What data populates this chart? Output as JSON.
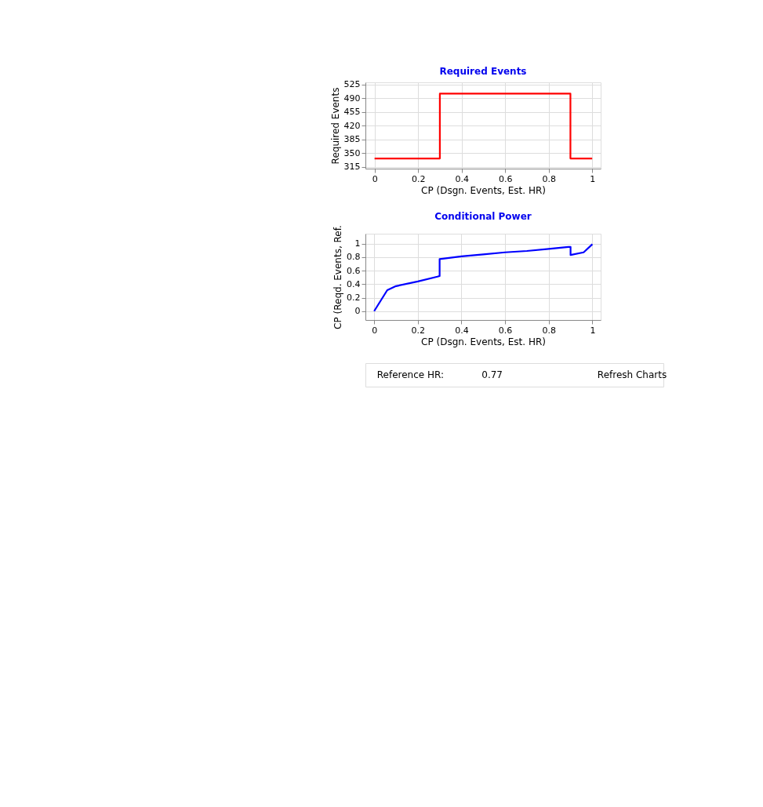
{
  "chart_data": [
    {
      "type": "line",
      "title": "Required Events",
      "xlabel": "CP (Dsgn. Events, Est. HR)",
      "ylabel": "Required Events",
      "x": [
        0,
        0.3,
        0.3,
        0.9,
        0.9,
        1
      ],
      "series": [
        {
          "color": "#ff0000",
          "values": [
            336,
            336,
            502,
            502,
            336,
            336
          ]
        }
      ],
      "xlim": [
        -0.042,
        1.039
      ],
      "ylim": [
        310,
        531
      ],
      "xticks": [
        0,
        0.2,
        0.4,
        0.6,
        0.8,
        1
      ],
      "yticks": [
        315,
        350,
        385,
        420,
        455,
        490,
        525
      ],
      "grid": true
    },
    {
      "type": "line",
      "title": "Conditional Power",
      "xlabel": "CP (Dsgn. Events, Est. HR)",
      "ylabel": "CP (Reqd. Events, Ref.",
      "x": [
        0,
        0.06,
        0.1,
        0.2,
        0.29,
        0.3,
        0.3,
        0.35,
        0.4,
        0.5,
        0.6,
        0.7,
        0.8,
        0.89,
        0.9,
        0.9,
        0.96,
        1
      ],
      "series": [
        {
          "color": "#0000ff",
          "values": [
            0,
            0.31,
            0.37,
            0.44,
            0.51,
            0.52,
            0.77,
            0.79,
            0.81,
            0.84,
            0.87,
            0.89,
            0.92,
            0.95,
            0.95,
            0.83,
            0.87,
            0.99
          ]
        }
      ],
      "xlim": [
        -0.04,
        1.038
      ],
      "ylim": [
        -0.13,
        1.145
      ],
      "xticks": [
        0,
        0.2,
        0.4,
        0.6,
        0.8,
        1
      ],
      "yticks": [
        0,
        0.2,
        0.4,
        0.6,
        0.8,
        1
      ],
      "grid": true
    },
    {
      "type": "other",
      "annotations": [
        "Reference HR:",
        "0.77",
        "Refresh Charts"
      ]
    }
  ]
}
